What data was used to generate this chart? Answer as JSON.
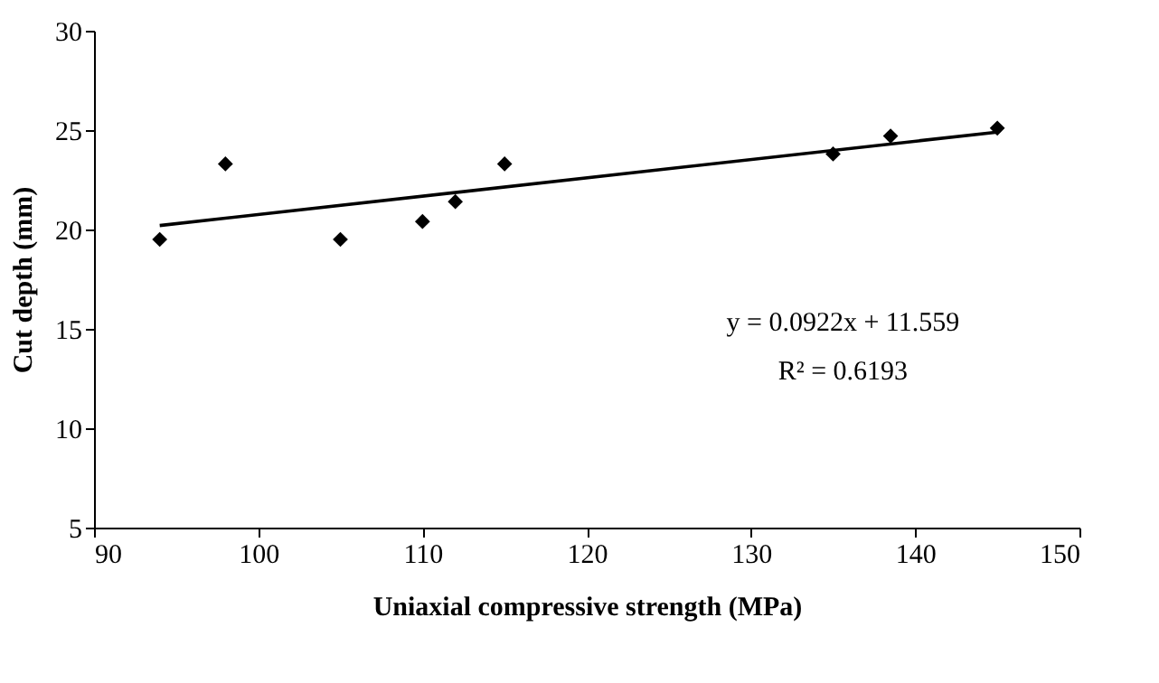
{
  "chart_data": {
    "type": "scatter",
    "xlabel": "Uniaxial compressive strength (MPa)",
    "ylabel": "Cut depth (mm)",
    "xlim": [
      90,
      150
    ],
    "xticks": [
      90,
      100,
      110,
      120,
      130,
      140,
      150
    ],
    "ylim": [
      5,
      30
    ],
    "yticks": [
      5,
      10,
      15,
      20,
      25,
      30
    ],
    "series": [
      {
        "color": "#000000",
        "marker": "diamond",
        "x": [
          94,
          98,
          105,
          110,
          112,
          115,
          135,
          138.5,
          145
        ],
        "values": [
          19.5,
          23.3,
          19.5,
          20.4,
          21.4,
          23.3,
          23.8,
          24.7,
          25.1
        ]
      },
      {
        "type": "line",
        "color": "#000000",
        "line_style": "solid",
        "x": [
          94,
          145
        ],
        "values": [
          20.2,
          24.9
        ]
      }
    ],
    "annotations": [
      "y = 0.0922x + 11.559",
      "R² = 0.6193"
    ]
  }
}
